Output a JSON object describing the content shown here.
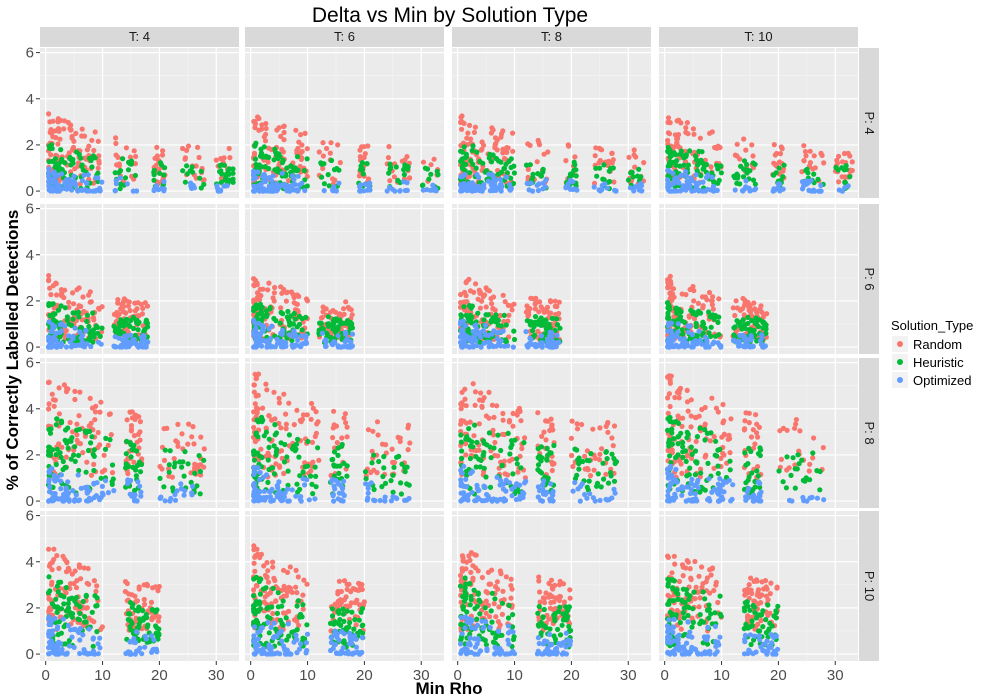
{
  "chart_data": {
    "type": "scatter",
    "title": "Delta vs Min by Solution Type",
    "xlabel": "Min Rho",
    "ylabel": "% of Correctly Labelled Detections",
    "xlim": [
      -1,
      34
    ],
    "ylim": [
      -0.3,
      6.2
    ],
    "x_ticks": [
      0,
      10,
      20,
      30
    ],
    "y_ticks": [
      0,
      2,
      4,
      6
    ],
    "grid": true,
    "facet_cols": [
      "T: 4",
      "T: 6",
      "T: 8",
      "T: 10"
    ],
    "facet_rows": [
      "P: 4",
      "P: 6",
      "P: 8",
      "P: 10"
    ],
    "legend": {
      "title": "Solution_Type",
      "position": "right",
      "entries": [
        {
          "name": "Random",
          "color": "#F8766D"
        },
        {
          "name": "Heuristic",
          "color": "#00BA38"
        },
        {
          "name": "Optimized",
          "color": "#619CFF"
        }
      ]
    },
    "panel_profiles": {
      "P: 4": {
        "Random": {
          "x_range": [
            0.5,
            33
          ],
          "y_range": [
            0.3,
            3.5
          ]
        },
        "Heuristic": {
          "x_range": [
            0.5,
            33
          ],
          "y_range": [
            0.1,
            2.2
          ]
        },
        "Optimized": {
          "x_range": [
            0.5,
            33
          ],
          "y_range": [
            0.0,
            1.0
          ]
        },
        "x_clusters": [
          [
            0.5,
            10
          ],
          [
            12,
            16
          ],
          [
            19,
            21
          ],
          [
            24,
            28
          ],
          [
            30,
            33
          ]
        ]
      },
      "P: 6": {
        "Random": {
          "x_range": [
            0.5,
            18
          ],
          "y_range": [
            0.3,
            3.2
          ]
        },
        "Heuristic": {
          "x_range": [
            0.5,
            18
          ],
          "y_range": [
            0.2,
            2.0
          ]
        },
        "Optimized": {
          "x_range": [
            0.5,
            18
          ],
          "y_range": [
            0.0,
            1.2
          ]
        },
        "x_clusters": [
          [
            0.5,
            10
          ],
          [
            12,
            18
          ]
        ]
      },
      "P: 8": {
        "Random": {
          "x_range": [
            0.5,
            28
          ],
          "y_range": [
            1.0,
            5.8
          ]
        },
        "Heuristic": {
          "x_range": [
            0.5,
            28
          ],
          "y_range": [
            0.3,
            4.0
          ]
        },
        "Optimized": {
          "x_range": [
            0.5,
            28
          ],
          "y_range": [
            0.0,
            1.6
          ]
        },
        "x_clusters": [
          [
            0.5,
            12
          ],
          [
            14,
            17
          ],
          [
            20,
            28
          ]
        ]
      },
      "P: 10": {
        "Random": {
          "x_range": [
            0.5,
            20
          ],
          "y_range": [
            1.0,
            4.8
          ]
        },
        "Heuristic": {
          "x_range": [
            0.5,
            20
          ],
          "y_range": [
            0.3,
            3.5
          ]
        },
        "Optimized": {
          "x_range": [
            0.5,
            20
          ],
          "y_range": [
            0.0,
            1.8
          ]
        },
        "x_clusters": [
          [
            0.5,
            10
          ],
          [
            14,
            20
          ]
        ]
      }
    }
  }
}
